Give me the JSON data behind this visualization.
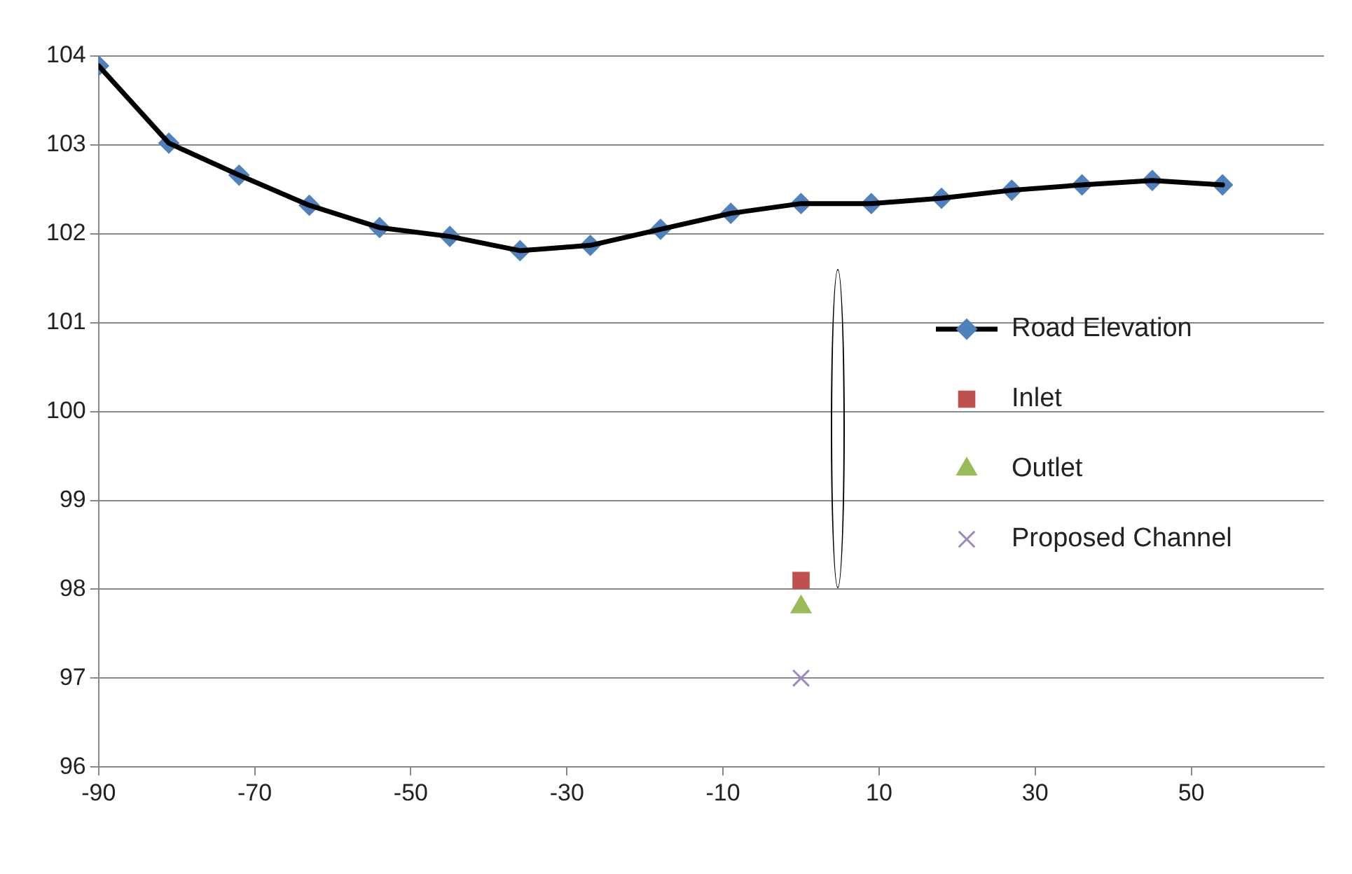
{
  "chart_data": {
    "type": "line",
    "xlim": [
      -90,
      67
    ],
    "xticks": [
      -90,
      -70,
      -50,
      -30,
      -10,
      10,
      30,
      50
    ],
    "ylim": [
      96,
      104
    ],
    "yticks": [
      96,
      97,
      98,
      99,
      100,
      101,
      102,
      103,
      104
    ],
    "grid": "y",
    "legend": "right",
    "series": [
      {
        "name": "Road Elevation",
        "marker": "none",
        "line_style": "solid",
        "color": "#000000",
        "x": [
          -90,
          -81,
          -72,
          -63,
          -54,
          -45,
          -36,
          -27,
          -18,
          -9,
          0,
          9,
          18,
          27,
          36,
          45,
          54
        ],
        "values": [
          103.89,
          103.02,
          102.66,
          102.32,
          102.07,
          101.97,
          101.81,
          101.87,
          102.05,
          102.23,
          102.34,
          102.34,
          102.4,
          102.49,
          102.55,
          102.6,
          102.55
        ]
      },
      {
        "type": "scatter",
        "marker": "diamond",
        "color": "#4f81bd",
        "x": [
          -90,
          -81,
          -72,
          -63,
          -54,
          -45,
          -36,
          -27,
          -18,
          -9,
          0,
          9,
          18,
          27,
          36,
          45,
          54
        ],
        "values": [
          103.89,
          103.02,
          102.66,
          102.32,
          102.07,
          101.97,
          101.81,
          101.87,
          102.05,
          102.23,
          102.34,
          102.34,
          102.4,
          102.49,
          102.55,
          102.6,
          102.55
        ]
      },
      {
        "name": "Inlet",
        "type": "scatter",
        "marker": "square",
        "color": "#c0504d",
        "x": [
          0
        ],
        "values": [
          98.1
        ]
      },
      {
        "name": "Outlet",
        "type": "scatter",
        "marker": "triangle",
        "color": "#9bbb59",
        "x": [
          0
        ],
        "values": [
          97.8
        ]
      },
      {
        "name": "Proposed Channel",
        "type": "scatter",
        "marker": "cross",
        "color": "#9e88c0",
        "x": [
          0
        ],
        "values": [
          97.0
        ]
      }
    ]
  }
}
